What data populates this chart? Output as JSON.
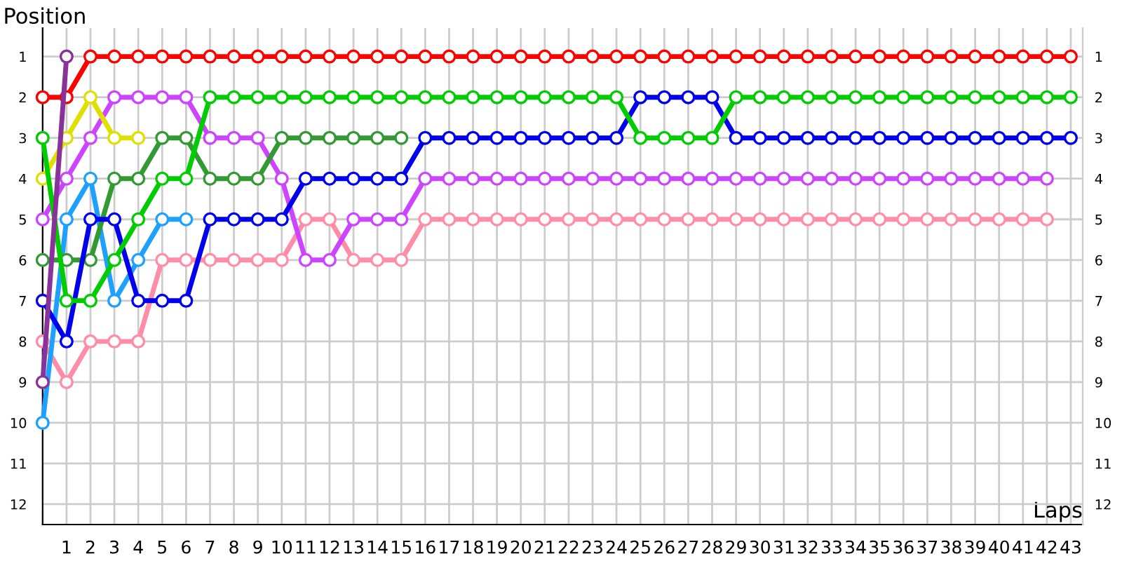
{
  "chart_data": {
    "type": "line",
    "xlabel": "Laps",
    "ylabel": "Position",
    "marker": "circle",
    "line_style": "solid",
    "grid": true,
    "xlim": [
      0,
      43.5
    ],
    "xticks": [
      1,
      2,
      3,
      4,
      5,
      6,
      7,
      8,
      9,
      10,
      11,
      12,
      13,
      14,
      15,
      16,
      17,
      18,
      19,
      20,
      21,
      22,
      23,
      24,
      25,
      26,
      27,
      28,
      29,
      30,
      31,
      32,
      33,
      34,
      35,
      36,
      37,
      38,
      39,
      40,
      41,
      42,
      43
    ],
    "ylim": [
      12.5,
      0.3
    ],
    "yticks": [
      1,
      2,
      3,
      4,
      5,
      6,
      7,
      8,
      9,
      10,
      11,
      12
    ],
    "y2lim": [
      12.5,
      0.3
    ],
    "y2ticks": [
      1,
      2,
      3,
      4,
      5,
      6,
      7,
      8,
      9,
      10,
      11,
      12
    ],
    "series": [
      {
        "color": "#ff8da8",
        "x": [
          0,
          1,
          2,
          3,
          4,
          5,
          6,
          7,
          8,
          9,
          10,
          11,
          12,
          13,
          14,
          15,
          16,
          17,
          18,
          19,
          20,
          21,
          22,
          23,
          24,
          25,
          26,
          27,
          28,
          29,
          30,
          31,
          32,
          33,
          34,
          35,
          36,
          37,
          38,
          39,
          40,
          41,
          42
        ],
        "values": [
          8,
          9,
          8,
          8,
          8,
          6,
          6,
          6,
          6,
          6,
          6,
          5,
          5,
          6,
          6,
          6,
          5,
          5,
          5,
          5,
          5,
          5,
          5,
          5,
          5,
          5,
          5,
          5,
          5,
          5,
          5,
          5,
          5,
          5,
          5,
          5,
          5,
          5,
          5,
          5,
          5,
          5,
          5
        ]
      },
      {
        "color": "#cc44ff",
        "x": [
          0,
          1,
          2,
          3,
          4,
          5,
          6,
          7,
          8,
          9,
          10,
          11,
          12,
          13,
          14,
          15,
          16,
          17,
          18,
          19,
          20,
          21,
          22,
          23,
          24,
          25,
          26,
          27,
          28,
          29,
          30,
          31,
          32,
          33,
          34,
          35,
          36,
          37,
          38,
          39,
          40,
          41,
          42
        ],
        "values": [
          5,
          4,
          3,
          2,
          2,
          2,
          2,
          3,
          3,
          3,
          4,
          6,
          6,
          5,
          5,
          5,
          4,
          4,
          4,
          4,
          4,
          4,
          4,
          4,
          4,
          4,
          4,
          4,
          4,
          4,
          4,
          4,
          4,
          4,
          4,
          4,
          4,
          4,
          4,
          4,
          4,
          4,
          4
        ]
      },
      {
        "color": "#1ea0ff",
        "x": [
          0,
          1,
          2,
          3,
          4,
          5,
          6
        ],
        "values": [
          10,
          5,
          4,
          7,
          6,
          5,
          5
        ]
      },
      {
        "color": "#e0e000",
        "x": [
          0,
          1,
          2,
          3,
          4
        ],
        "values": [
          4,
          3,
          2,
          3,
          3
        ]
      },
      {
        "color": "#339933",
        "x": [
          0,
          1,
          2,
          3,
          4,
          5,
          6,
          7,
          8,
          9,
          10,
          11,
          12,
          13,
          14,
          15
        ],
        "values": [
          6,
          6,
          6,
          4,
          4,
          3,
          3,
          4,
          4,
          4,
          3,
          3,
          3,
          3,
          3,
          3
        ]
      },
      {
        "color": "#0000ee",
        "x": [
          0,
          1,
          2,
          3,
          4,
          5,
          6,
          7,
          8,
          9,
          10,
          11,
          12,
          13,
          14,
          15,
          16,
          17,
          18,
          19,
          20,
          21,
          22,
          23,
          24,
          25,
          26,
          27,
          28,
          29,
          30,
          31,
          32,
          33,
          34,
          35,
          36,
          37,
          38,
          39,
          40,
          41,
          42,
          43
        ],
        "values": [
          7,
          8,
          5,
          5,
          7,
          7,
          7,
          5,
          5,
          5,
          5,
          4,
          4,
          4,
          4,
          4,
          3,
          3,
          3,
          3,
          3,
          3,
          3,
          3,
          3,
          2,
          2,
          2,
          2,
          3,
          3,
          3,
          3,
          3,
          3,
          3,
          3,
          3,
          3,
          3,
          3,
          3,
          3,
          3
        ]
      },
      {
        "color": "#00cc00",
        "x": [
          0,
          1,
          2,
          3,
          4,
          5,
          6,
          7,
          8,
          9,
          10,
          11,
          12,
          13,
          14,
          15,
          16,
          17,
          18,
          19,
          20,
          21,
          22,
          23,
          24,
          25,
          26,
          27,
          28,
          29,
          30,
          31,
          32,
          33,
          34,
          35,
          36,
          37,
          38,
          39,
          40,
          41,
          42,
          43
        ],
        "values": [
          3,
          7,
          7,
          6,
          5,
          4,
          4,
          2,
          2,
          2,
          2,
          2,
          2,
          2,
          2,
          2,
          2,
          2,
          2,
          2,
          2,
          2,
          2,
          2,
          2,
          3,
          3,
          3,
          3,
          2,
          2,
          2,
          2,
          2,
          2,
          2,
          2,
          2,
          2,
          2,
          2,
          2,
          2,
          2
        ]
      },
      {
        "color": "#ff0000",
        "x": [
          0,
          1,
          2,
          3,
          4,
          5,
          6,
          7,
          8,
          9,
          10,
          11,
          12,
          13,
          14,
          15,
          16,
          17,
          18,
          19,
          20,
          21,
          22,
          23,
          24,
          25,
          26,
          27,
          28,
          29,
          30,
          31,
          32,
          33,
          34,
          35,
          36,
          37,
          38,
          39,
          40,
          41,
          42,
          43
        ],
        "values": [
          2,
          2,
          1,
          1,
          1,
          1,
          1,
          1,
          1,
          1,
          1,
          1,
          1,
          1,
          1,
          1,
          1,
          1,
          1,
          1,
          1,
          1,
          1,
          1,
          1,
          1,
          1,
          1,
          1,
          1,
          1,
          1,
          1,
          1,
          1,
          1,
          1,
          1,
          1,
          1,
          1,
          1,
          1,
          1
        ]
      },
      {
        "color": "#883399",
        "x": [
          0,
          1
        ],
        "values": [
          9,
          1
        ]
      }
    ]
  }
}
